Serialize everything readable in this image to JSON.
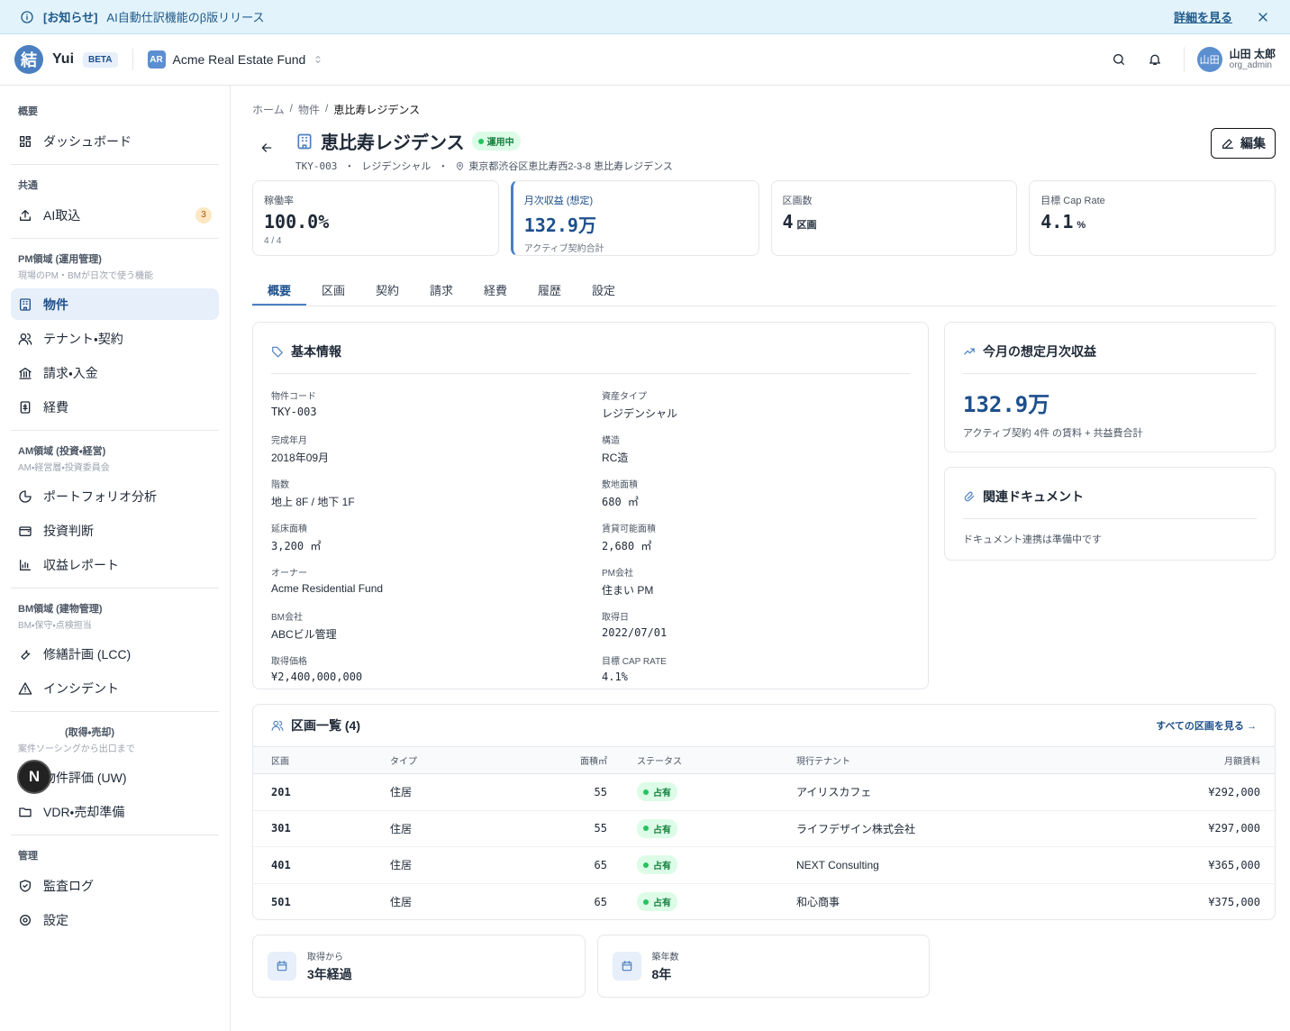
{
  "banner": {
    "tag": "[お知らせ]",
    "text": "AI自動仕訳機能のβ版リリース",
    "link": "詳細を見る"
  },
  "header": {
    "logo": "結",
    "app": "Yui",
    "beta": "BETA",
    "org_initials": "AR",
    "org": "Acme Real Estate Fund",
    "user_initials": "山田",
    "user_name": "山田 太郎",
    "user_role": "org_admin"
  },
  "sidebar": {
    "sections": [
      {
        "title": "概要",
        "items": [
          {
            "label": "ダッシュボード"
          }
        ]
      },
      {
        "title": "共通",
        "items": [
          {
            "label": "AI取込",
            "badge": "3"
          }
        ]
      },
      {
        "title": "PM領域 (運用管理)",
        "subtitle": "現場のPM・BMが日次で使う機能",
        "items": [
          {
            "label": "物件",
            "active": true
          },
          {
            "label": "テナント・契約"
          },
          {
            "label": "請求・入金"
          },
          {
            "label": "経費"
          }
        ]
      },
      {
        "title": "AM領域 (投資・経営)",
        "subtitle": "AM・経営層・投資委員会",
        "items": [
          {
            "label": "ポートフォリオ分析"
          },
          {
            "label": "投資判断"
          },
          {
            "label": "収益レポート"
          }
        ]
      },
      {
        "title": "BM領域 (建物管理)",
        "subtitle": "BM・保守・点検担当",
        "items": [
          {
            "label": "修繕計画 (LCC)"
          },
          {
            "label": "インシデント"
          }
        ]
      },
      {
        "title": "(取得・売却)",
        "subtitle": "案件ソーシングから出口まで",
        "items": [
          {
            "label": "物件評価 (UW)"
          },
          {
            "label": "VDR・売却準備"
          }
        ]
      },
      {
        "title": "管理",
        "items": [
          {
            "label": "監査ログ"
          },
          {
            "label": "設定"
          }
        ]
      }
    ]
  },
  "dev_badge": "N",
  "breadcrumb": [
    "ホーム",
    "物件",
    "恵比寿レジデンス"
  ],
  "property": {
    "name": "恵比寿レジデンス",
    "status": "運用中",
    "code": "TKY-003",
    "type": "レジデンシャル",
    "address": "東京都渋谷区恵比寿西2-3-8 恵比寿レジデンス",
    "edit": "編集"
  },
  "kpis": [
    {
      "label": "稼働率",
      "value": "100.0%",
      "sub": "4 / 4"
    },
    {
      "label": "月次収益 (想定)",
      "value": "132.9万",
      "sub": "アクティブ契約合計",
      "highlight": true
    },
    {
      "label": "区画数",
      "value": "4",
      "unit": "区画"
    },
    {
      "label": "目標 Cap Rate",
      "value": "4.1",
      "unit": "%"
    }
  ],
  "tabs": {
    "items": [
      "概要",
      "区画",
      "契約",
      "請求",
      "経費",
      "履歴",
      "設定"
    ],
    "active": 0
  },
  "basic_info": {
    "title": "基本情報",
    "fields": [
      [
        "物件コード",
        "TKY-003"
      ],
      [
        "資産タイプ",
        "レジデンシャル"
      ],
      [
        "完成年月",
        "2018年09月"
      ],
      [
        "構造",
        "RC造"
      ],
      [
        "階数",
        "地上 8F / 地下 1F"
      ],
      [
        "敷地面積",
        "680 ㎡"
      ],
      [
        "延床面積",
        "3,200 ㎡"
      ],
      [
        "賃貸可能面積",
        "2,680 ㎡"
      ],
      [
        "オーナー",
        "Acme Residential Fund"
      ],
      [
        "PM会社",
        "住まい PM"
      ],
      [
        "BM会社",
        "ABCビル管理"
      ],
      [
        "取得日",
        "2022/07/01"
      ],
      [
        "取得価格",
        "¥2,400,000,000"
      ],
      [
        "目標 CAP RATE",
        "4.1%"
      ]
    ]
  },
  "revenue": {
    "title": "今月の想定月次収益",
    "value": "132.9万",
    "note": "アクティブ契約 4件 の賃料 + 共益費合計"
  },
  "documents": {
    "title": "関連ドキュメント",
    "note": "ドキュメント連携は準備中です"
  },
  "units": {
    "title": "区画一覧 (4)",
    "link": "すべての区画を見る →",
    "columns": [
      "区画",
      "タイプ",
      "面積㎡",
      "ステータス",
      "現行テナント",
      "月額賃料"
    ],
    "rows": [
      [
        "201",
        "住居",
        "55",
        "占有",
        "アイリスカフェ",
        "¥292,000"
      ],
      [
        "301",
        "住居",
        "55",
        "占有",
        "ライフデザイン株式会社",
        "¥297,000"
      ],
      [
        "401",
        "住居",
        "65",
        "占有",
        "NEXT Consulting",
        "¥365,000"
      ],
      [
        "501",
        "住居",
        "65",
        "占有",
        "和心商事",
        "¥375,000"
      ]
    ]
  },
  "summary": [
    {
      "label": "取得から",
      "value": "3年経過"
    },
    {
      "label": "築年数",
      "value": "8年"
    }
  ]
}
